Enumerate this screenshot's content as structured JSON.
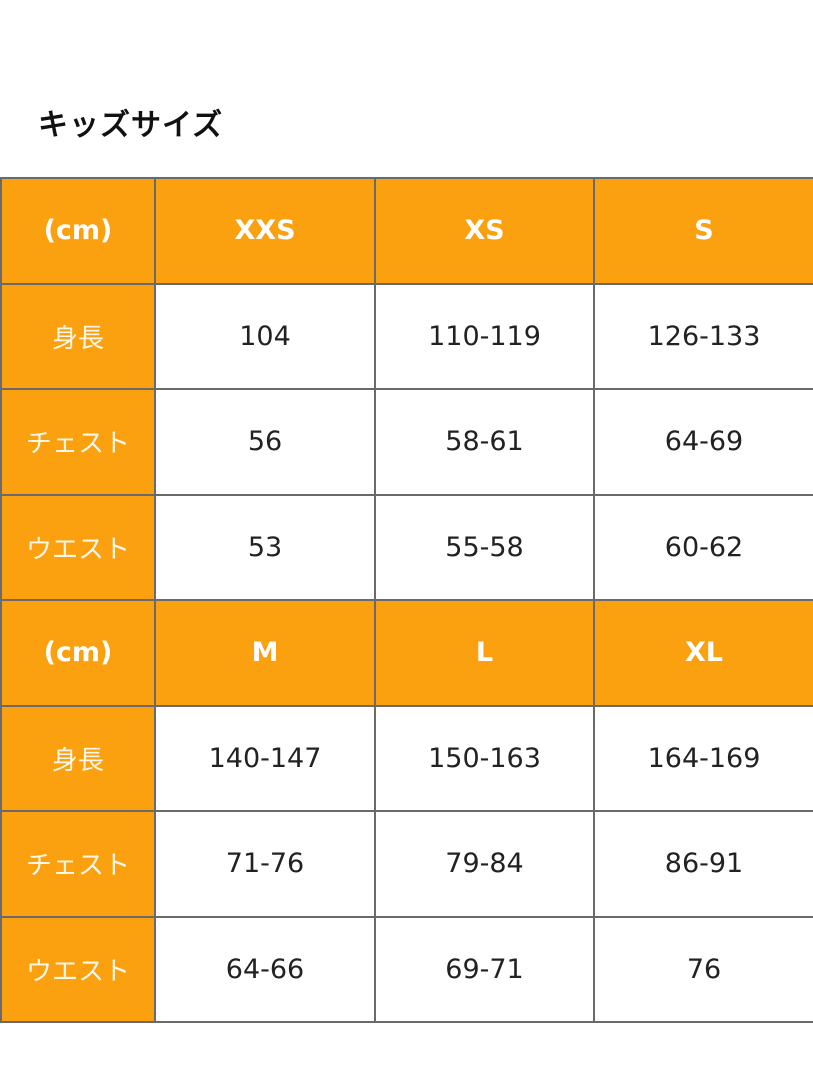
{
  "title": "キッズサイズ",
  "colors": {
    "header_bg": "#fba00f",
    "border": "#6a6a6a"
  },
  "tables": [
    {
      "header": [
        "(cm)",
        "XXS",
        "XS",
        "S"
      ],
      "rows": [
        {
          "label": "身長",
          "values": [
            "104",
            "110-119",
            "126-133"
          ]
        },
        {
          "label": "チェスト",
          "values": [
            "56",
            "58-61",
            "64-69"
          ]
        },
        {
          "label": "ウエスト",
          "values": [
            "53",
            "55-58",
            "60-62"
          ]
        }
      ]
    },
    {
      "header": [
        "(cm)",
        "M",
        "L",
        "XL"
      ],
      "rows": [
        {
          "label": "身長",
          "values": [
            "140-147",
            "150-163",
            "164-169"
          ]
        },
        {
          "label": "チェスト",
          "values": [
            "71-76",
            "79-84",
            "86-91"
          ]
        },
        {
          "label": "ウエスト",
          "values": [
            "64-66",
            "69-71",
            "76"
          ]
        }
      ]
    }
  ]
}
